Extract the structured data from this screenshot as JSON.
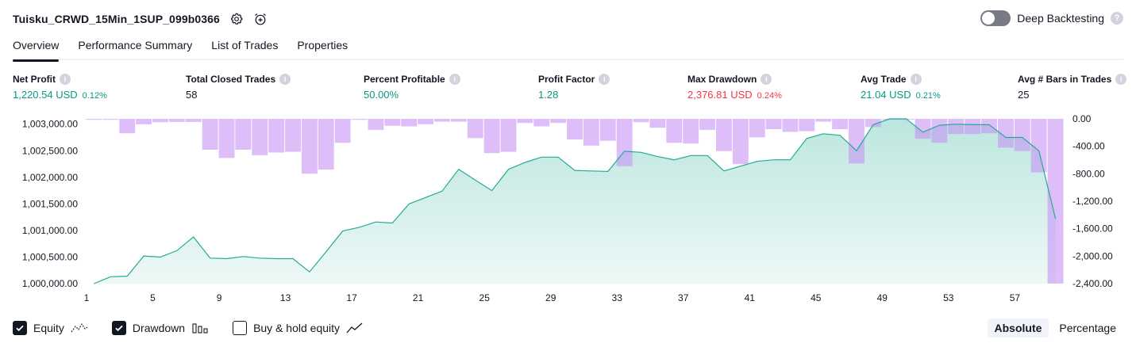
{
  "header": {
    "title": "Tuisku_CRWD_15Min_1SUP_099b0366",
    "settings_icon": "gear-icon",
    "alert_icon": "alarm-add-icon"
  },
  "deep_backtesting": {
    "label": "Deep Backtesting",
    "enabled": false
  },
  "tabs": [
    {
      "label": "Overview",
      "active": true
    },
    {
      "label": "Performance Summary",
      "active": false
    },
    {
      "label": "List of Trades",
      "active": false
    },
    {
      "label": "Properties",
      "active": false
    }
  ],
  "metrics": [
    {
      "label": "Net Profit",
      "value": "1,220.54 USD",
      "pct": "0.12%",
      "color": "#089981"
    },
    {
      "label": "Total Closed Trades",
      "value": "58",
      "pct": "",
      "color": "#131722"
    },
    {
      "label": "Percent Profitable",
      "value": "50.00%",
      "pct": "",
      "color": "#089981"
    },
    {
      "label": "Profit Factor",
      "value": "1.28",
      "pct": "",
      "color": "#089981"
    },
    {
      "label": "Max Drawdown",
      "value": "2,376.81 USD",
      "pct": "0.24%",
      "color": "#f23645"
    },
    {
      "label": "Avg Trade",
      "value": "21.04 USD",
      "pct": "0.21%",
      "color": "#089981"
    },
    {
      "label": "Avg # Bars in Trades",
      "value": "25",
      "pct": "",
      "color": "#131722"
    }
  ],
  "chart_data": {
    "type": "area",
    "x": [
      1,
      2,
      3,
      4,
      5,
      6,
      7,
      8,
      9,
      10,
      11,
      12,
      13,
      14,
      15,
      16,
      17,
      18,
      19,
      20,
      21,
      22,
      23,
      24,
      25,
      26,
      27,
      28,
      29,
      30,
      31,
      32,
      33,
      34,
      35,
      36,
      37,
      38,
      39,
      40,
      41,
      42,
      43,
      44,
      45,
      46,
      47,
      48,
      49,
      50,
      51,
      52,
      53,
      54,
      55,
      56,
      57,
      58,
      59
    ],
    "x_ticks": [
      "1",
      "5",
      "9",
      "13",
      "17",
      "21",
      "25",
      "29",
      "33",
      "37",
      "41",
      "45",
      "49",
      "53",
      "57"
    ],
    "left_axis": {
      "ticks": [
        "1,003,000.00",
        "1,002,500.00",
        "1,002,000.00",
        "1,001,500.00",
        "1,001,000.00",
        "1,000,500.00",
        "1,000,000.00"
      ],
      "range": [
        1000000,
        1003100
      ]
    },
    "right_axis": {
      "ticks": [
        "0.00",
        "-400.00",
        "-800.00",
        "-1,200.00",
        "-1,600.00",
        "-2,000.00",
        "-2,400.00"
      ],
      "range": [
        0,
        -2400
      ]
    },
    "series": [
      {
        "name": "Equity",
        "color": "#22ab94",
        "values": [
          1000000,
          1000130,
          1000140,
          1000520,
          1000500,
          1000620,
          1000880,
          1000480,
          1000470,
          1000510,
          1000480,
          1000470,
          1000470,
          1000220,
          1000600,
          1000990,
          1001060,
          1001160,
          1001140,
          1001500,
          1001620,
          1001740,
          1002150,
          1001950,
          1001750,
          1002150,
          1002280,
          1002380,
          1002380,
          1002130,
          1002120,
          1002110,
          1002490,
          1002470,
          1002390,
          1002330,
          1002410,
          1002410,
          1002120,
          1002210,
          1002300,
          1002330,
          1002330,
          1002730,
          1002820,
          1002790,
          1002500,
          1002990,
          1003100,
          1003100,
          1002850,
          1002980,
          1003000,
          1002990,
          1002990,
          1002750,
          1002750,
          1002500,
          1001220
        ]
      },
      {
        "name": "Drawdown",
        "color": "#c792f5",
        "values": [
          -5,
          -10,
          -210,
          -80,
          -50,
          -45,
          -45,
          -450,
          -570,
          -450,
          -530,
          -490,
          -480,
          -800,
          -740,
          -350,
          -10,
          -160,
          -100,
          -110,
          -80,
          -40,
          -40,
          -280,
          -500,
          -480,
          -60,
          -110,
          -60,
          -300,
          -390,
          -320,
          -690,
          -50,
          -130,
          -350,
          -360,
          -160,
          -470,
          -660,
          -270,
          -150,
          -190,
          -180,
          -40,
          -150,
          -650,
          -120,
          -10,
          -10,
          -290,
          -350,
          -220,
          -220,
          -210,
          -420,
          -470,
          -780,
          -2400
        ]
      }
    ]
  },
  "legend": [
    {
      "label": "Equity",
      "checked": true,
      "icon": "equity-line-icon"
    },
    {
      "label": "Drawdown",
      "checked": true,
      "icon": "drawdown-bars-icon"
    },
    {
      "label": "Buy & hold equity",
      "checked": false,
      "icon": "buy-hold-line-icon"
    }
  ],
  "modes": [
    {
      "label": "Absolute",
      "active": true
    },
    {
      "label": "Percentage",
      "active": false
    }
  ]
}
